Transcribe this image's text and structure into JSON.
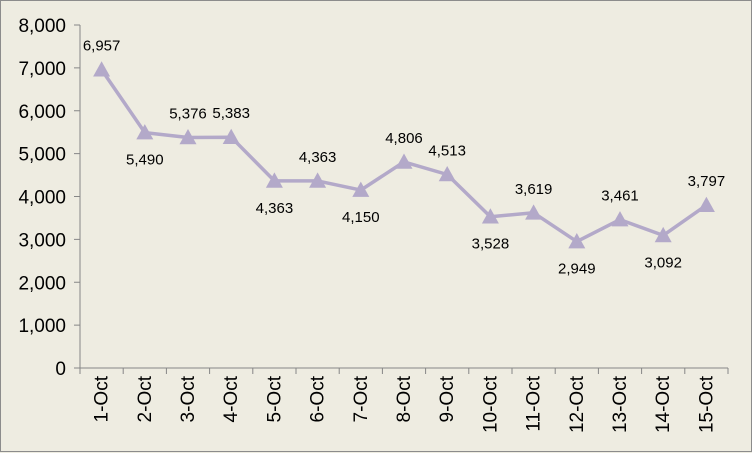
{
  "chart_data": {
    "type": "line",
    "title": "",
    "xlabel": "",
    "ylabel": "",
    "categories": [
      "1-Oct",
      "2-Oct",
      "3-Oct",
      "4-Oct",
      "5-Oct",
      "6-Oct",
      "7-Oct",
      "8-Oct",
      "9-Oct",
      "10-Oct",
      "11-Oct",
      "12-Oct",
      "13-Oct",
      "14-Oct",
      "15-Oct"
    ],
    "values": [
      6957,
      5490,
      5376,
      5383,
      4363,
      4363,
      4150,
      4806,
      4513,
      3528,
      3619,
      2949,
      3461,
      3092,
      3797
    ],
    "value_labels": [
      "6,957",
      "5,490",
      "5,376",
      "5,383",
      "4,363",
      "4,363",
      "4,150",
      "4,806",
      "4,513",
      "3,528",
      "3,619",
      "2,949",
      "3,461",
      "3,092",
      "3,797"
    ],
    "label_positions": [
      "above",
      "below",
      "above",
      "above",
      "below",
      "above",
      "below",
      "above",
      "above",
      "below",
      "above",
      "below",
      "above",
      "below",
      "above"
    ],
    "yticks": [
      "0",
      "1,000",
      "2,000",
      "3,000",
      "4,000",
      "5,000",
      "6,000",
      "7,000",
      "8,000"
    ],
    "ylim": [
      0,
      8000
    ],
    "grid": false,
    "legend": "none",
    "marker": "triangle",
    "colors": {
      "series": "#b3a9c9",
      "background": "#eeece1",
      "axis": "#868686",
      "text": "#000000"
    }
  }
}
